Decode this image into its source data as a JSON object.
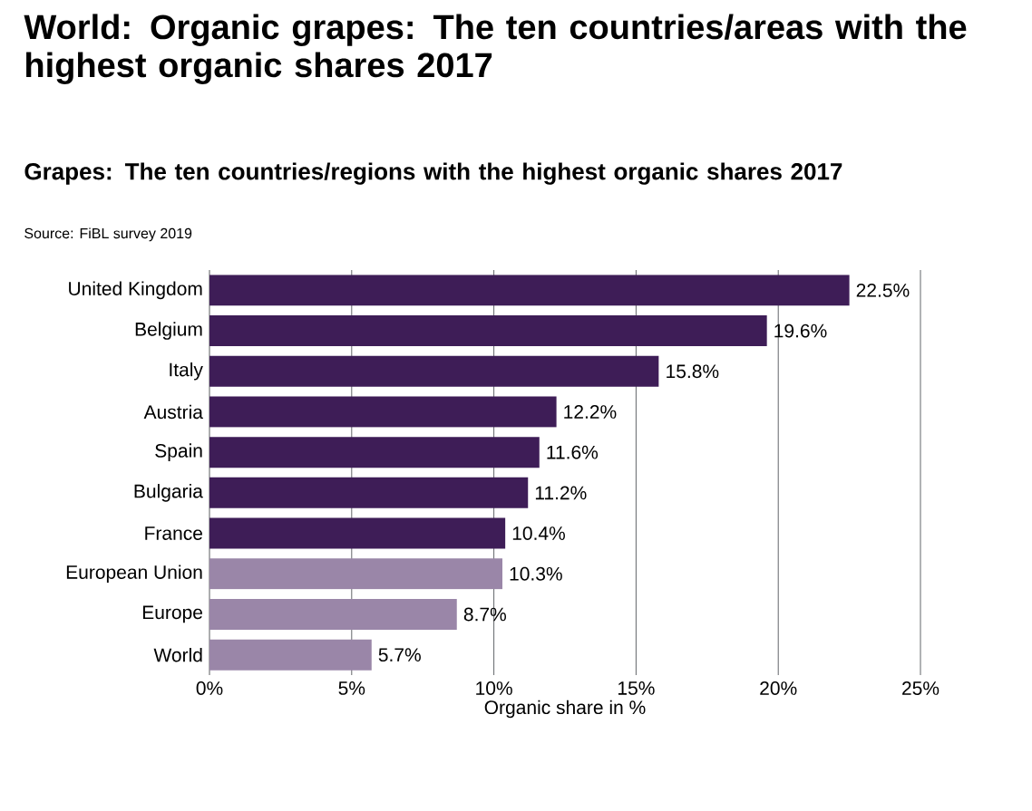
{
  "chart_data": {
    "type": "bar",
    "orientation": "horizontal",
    "title": "World: Organic grapes: The ten countries/areas with the highest organic shares 2017",
    "subtitle": "Grapes: The ten countries/regions with the highest organic shares 2017",
    "annotations": [
      "Source: FiBL survey 2019"
    ],
    "xlabel": "Organic share in %",
    "categories": [
      "United Kingdom",
      "Belgium",
      "Italy",
      "Austria",
      "Spain",
      "Bulgaria",
      "France",
      "European Union",
      "Europe",
      "World"
    ],
    "values": [
      22.5,
      19.6,
      15.8,
      12.2,
      11.6,
      11.2,
      10.4,
      10.3,
      8.7,
      5.7
    ],
    "value_labels": [
      "22.5%",
      "19.6%",
      "15.8%",
      "12.2%",
      "11.6%",
      "11.2%",
      "10.4%",
      "10.3%",
      "8.7%",
      "5.7%"
    ],
    "colors": [
      "#3e1d57",
      "#3e1d57",
      "#3e1d57",
      "#3e1d57",
      "#3e1d57",
      "#3e1d57",
      "#3e1d57",
      "#9a86a8",
      "#9a86a8",
      "#9a86a8"
    ],
    "xlim": [
      0,
      25
    ],
    "xticks": [
      {
        "value": 0,
        "label": "0%"
      },
      {
        "value": 5,
        "label": "5%"
      },
      {
        "value": 10,
        "label": "10%"
      },
      {
        "value": 15,
        "label": "15%"
      },
      {
        "value": 20,
        "label": "20%"
      },
      {
        "value": 25,
        "label": "25%"
      }
    ],
    "grid": "x"
  }
}
